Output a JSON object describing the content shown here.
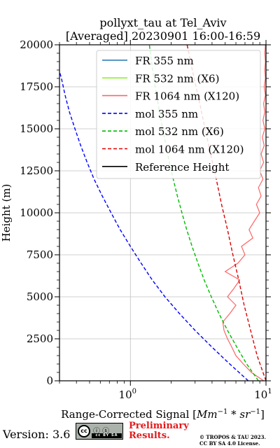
{
  "title_line1": "pollyxt_tau at Tel_Aviv",
  "title_line2": "[Averaged] 20230901 16:00-16:59",
  "footer": {
    "version": "Version: 3.6",
    "license_badge": "cc BY SA",
    "preliminary_line1": "Preliminary",
    "preliminary_line2": "Results.",
    "copyright_line1": "© TROPOS & TAU 2023.",
    "copyright_line2": "CC BY SA 4.0 License.",
    "preliminary_color": "#e41a1c"
  },
  "chart_data": {
    "type": "line",
    "xscale": "log",
    "xlim": [
      0.3,
      10
    ],
    "ylim": [
      0,
      20000
    ],
    "xlabel": "Range-Corrected Signal [Mm^-1 * sr^-1]",
    "ylabel": "Height (m)",
    "x_ticks": [
      1,
      10
    ],
    "x_tick_labels": [
      "10^0",
      "10^1"
    ],
    "y_ticks": [
      0,
      2500,
      5000,
      7500,
      10000,
      12500,
      15000,
      17500,
      20000
    ],
    "y_tick_labels": [
      "0",
      "2500",
      "5000",
      "7500",
      "10000",
      "12500",
      "15000",
      "17500",
      "20000"
    ],
    "grid": true,
    "legend_position": "top-right",
    "series": [
      {
        "name": "FR 355 nm",
        "color": "#1f77b4",
        "style": "solid",
        "points": []
      },
      {
        "name": "FR 532 nm (X6)",
        "color": "#90ee30",
        "style": "solid",
        "points": []
      },
      {
        "name": "FR 1064 nm (X120)",
        "color": "#ff6464",
        "style": "solid",
        "points": [
          [
            9.6,
            0
          ],
          [
            7.8,
            500
          ],
          [
            6.8,
            1000
          ],
          [
            6.0,
            1500
          ],
          [
            5.6,
            2000
          ],
          [
            5.2,
            2500
          ],
          [
            4.9,
            3000
          ],
          [
            4.8,
            3500
          ],
          [
            5.4,
            4000
          ],
          [
            6.0,
            4500
          ],
          [
            5.2,
            5000
          ],
          [
            5.8,
            5500
          ],
          [
            6.4,
            6000
          ],
          [
            5.0,
            6500
          ],
          [
            6.2,
            7000
          ],
          [
            7.0,
            7500
          ],
          [
            6.6,
            8000
          ],
          [
            8.0,
            8500
          ],
          [
            7.5,
            9000
          ],
          [
            8.2,
            9500
          ],
          [
            9.0,
            10000
          ],
          [
            8.5,
            10500
          ],
          [
            9.2,
            11000
          ],
          [
            8.8,
            11500
          ],
          [
            9.5,
            12000
          ],
          [
            9.0,
            12500
          ],
          [
            9.6,
            13000
          ],
          [
            9.2,
            13500
          ],
          [
            9.7,
            14000
          ],
          [
            9.4,
            14500
          ],
          [
            9.8,
            15000
          ],
          [
            9.5,
            15500
          ],
          [
            9.8,
            16000
          ],
          [
            9.6,
            16500
          ],
          [
            9.9,
            17000
          ],
          [
            9.7,
            17500
          ],
          [
            9.9,
            18000
          ],
          [
            9.8,
            18500
          ],
          [
            9.9,
            19000
          ],
          [
            9.8,
            19500
          ],
          [
            9.9,
            20000
          ]
        ]
      },
      {
        "name": "mol 355 nm",
        "color": "#0000ff",
        "style": "dashed",
        "points": [
          [
            7.4,
            0
          ],
          [
            5.4,
            1000
          ],
          [
            4.0,
            2000
          ],
          [
            3.0,
            3000
          ],
          [
            2.3,
            4000
          ],
          [
            1.8,
            5000
          ],
          [
            1.45,
            6000
          ],
          [
            1.2,
            7000
          ],
          [
            1.0,
            8000
          ],
          [
            0.84,
            9000
          ],
          [
            0.72,
            10000
          ],
          [
            0.62,
            11000
          ],
          [
            0.54,
            12000
          ],
          [
            0.48,
            13000
          ],
          [
            0.43,
            14000
          ],
          [
            0.39,
            15000
          ],
          [
            0.355,
            16000
          ],
          [
            0.33,
            17000
          ],
          [
            0.31,
            18000
          ],
          [
            0.298,
            18500
          ]
        ]
      },
      {
        "name": "mol 532 nm (X6)",
        "color": "#00bb00",
        "style": "dashed",
        "points": [
          [
            8.8,
            0
          ],
          [
            7.2,
            1000
          ],
          [
            6.1,
            2000
          ],
          [
            5.2,
            3000
          ],
          [
            4.5,
            4000
          ],
          [
            3.95,
            5000
          ],
          [
            3.5,
            6000
          ],
          [
            3.15,
            7000
          ],
          [
            2.85,
            8000
          ],
          [
            2.6,
            9000
          ],
          [
            2.4,
            10000
          ],
          [
            2.22,
            11000
          ],
          [
            2.07,
            12000
          ],
          [
            1.94,
            13000
          ],
          [
            1.83,
            14000
          ],
          [
            1.73,
            15000
          ],
          [
            1.64,
            16000
          ],
          [
            1.56,
            17000
          ],
          [
            1.49,
            18000
          ],
          [
            1.43,
            19000
          ],
          [
            1.38,
            20000
          ]
        ]
      },
      {
        "name": "mol 1064 nm (X120)",
        "color": "#dd0000",
        "style": "dashed",
        "points": [
          [
            10.0,
            0
          ],
          [
            9.5,
            500
          ],
          [
            8.6,
            1500
          ],
          [
            7.7,
            3000
          ],
          [
            6.9,
            4500
          ],
          [
            6.3,
            6000
          ],
          [
            5.7,
            7500
          ],
          [
            5.2,
            9000
          ],
          [
            4.7,
            10500
          ],
          [
            4.3,
            12000
          ],
          [
            3.9,
            13500
          ],
          [
            3.55,
            15000
          ],
          [
            3.25,
            16500
          ],
          [
            2.95,
            18000
          ],
          [
            2.7,
            19500
          ],
          [
            2.62,
            20000
          ]
        ]
      },
      {
        "name": "Reference Height",
        "color": "#000000",
        "style": "solid",
        "points": []
      }
    ]
  }
}
